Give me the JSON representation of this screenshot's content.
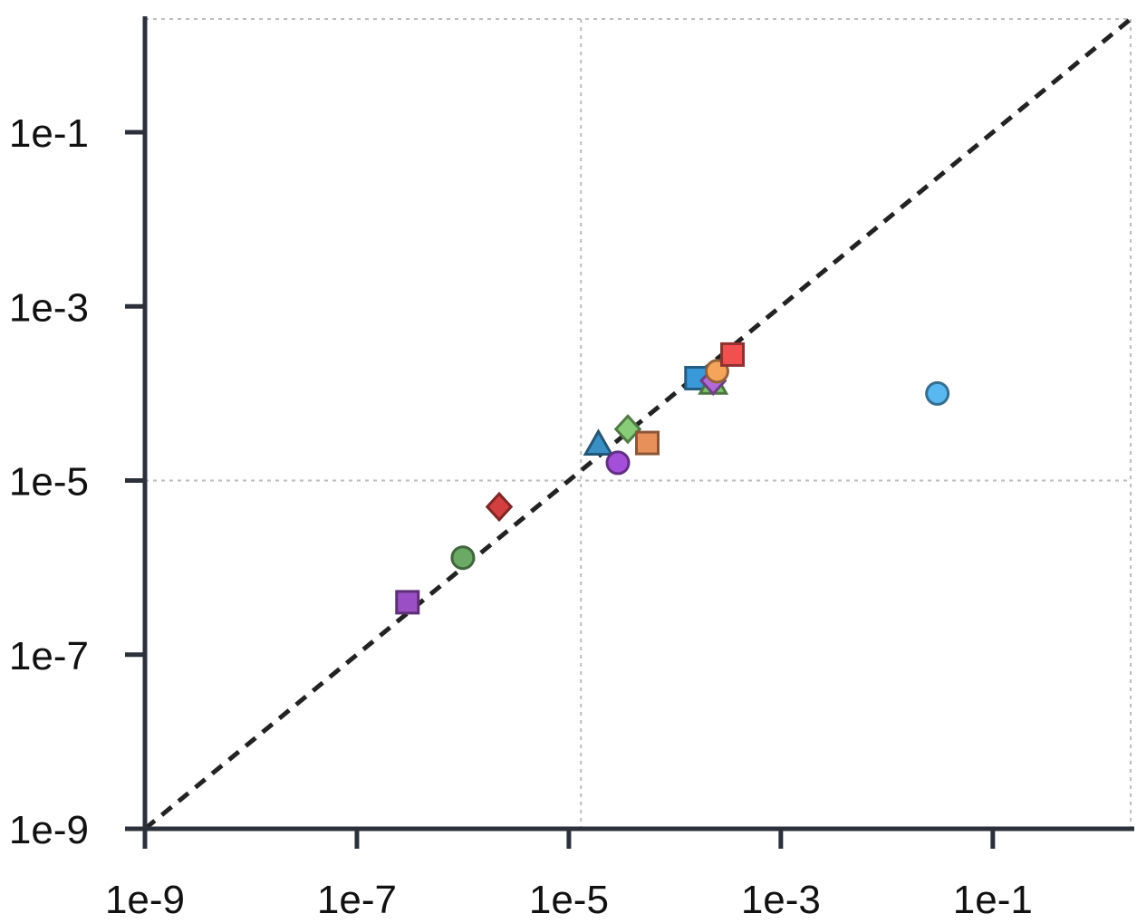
{
  "chart_data": {
    "type": "scatter",
    "title": "",
    "xlabel": "",
    "ylabel": "",
    "xscale": "log",
    "yscale": "log",
    "xlim": [
      1e-09,
      2
    ],
    "ylim": [
      1e-09,
      2
    ],
    "x_ticks": [
      1e-09,
      1e-07,
      1e-05,
      0.001,
      0.1
    ],
    "x_tick_labels": [
      "1e-9",
      "1e-7",
      "1e-5",
      "1e-3",
      "1e-1"
    ],
    "y_ticks": [
      1e-09,
      1e-07,
      1e-05,
      0.001,
      0.1
    ],
    "y_tick_labels": [
      "1e-9",
      "1e-7",
      "1e-5",
      "1e-3",
      "1e-1"
    ],
    "grid": {
      "x": [
        1.3e-05
      ],
      "y": [
        1e-05
      ],
      "style": "dotted"
    },
    "reference_line": {
      "type": "y=x",
      "style": "dashed",
      "color": "#222222"
    },
    "legend": "none",
    "points": [
      {
        "x": 3e-07,
        "y": 4e-07,
        "marker": "square",
        "color": "#9b4fc4"
      },
      {
        "x": 1e-06,
        "y": 1.3e-06,
        "marker": "circle",
        "color": "#6aaa64"
      },
      {
        "x": 2.2e-06,
        "y": 5e-06,
        "marker": "diamond",
        "color": "#d33f3f"
      },
      {
        "x": 1.9e-05,
        "y": 2.6e-05,
        "marker": "triangle",
        "color": "#3a8fc4"
      },
      {
        "x": 2.9e-05,
        "y": 1.6e-05,
        "marker": "circle",
        "color": "#a44fd9"
      },
      {
        "x": 3.6e-05,
        "y": 3.9e-05,
        "marker": "diamond",
        "color": "#88cc77"
      },
      {
        "x": 5.5e-05,
        "y": 2.7e-05,
        "marker": "square",
        "color": "#e8905a"
      },
      {
        "x": 0.00016,
        "y": 0.00015,
        "marker": "square",
        "color": "#3a9ad9"
      },
      {
        "x": 0.00023,
        "y": 0.00013,
        "marker": "triangle",
        "color": "#7dc46a"
      },
      {
        "x": 0.00023,
        "y": 0.00014,
        "marker": "diamond",
        "color": "#b36ad9"
      },
      {
        "x": 0.00025,
        "y": 0.00018,
        "marker": "circle",
        "color": "#f5a45c"
      },
      {
        "x": 0.00035,
        "y": 0.00028,
        "marker": "square",
        "color": "#f05050"
      },
      {
        "x": 0.03,
        "y": 0.0001,
        "marker": "circle",
        "color": "#5ab8f0"
      }
    ]
  }
}
